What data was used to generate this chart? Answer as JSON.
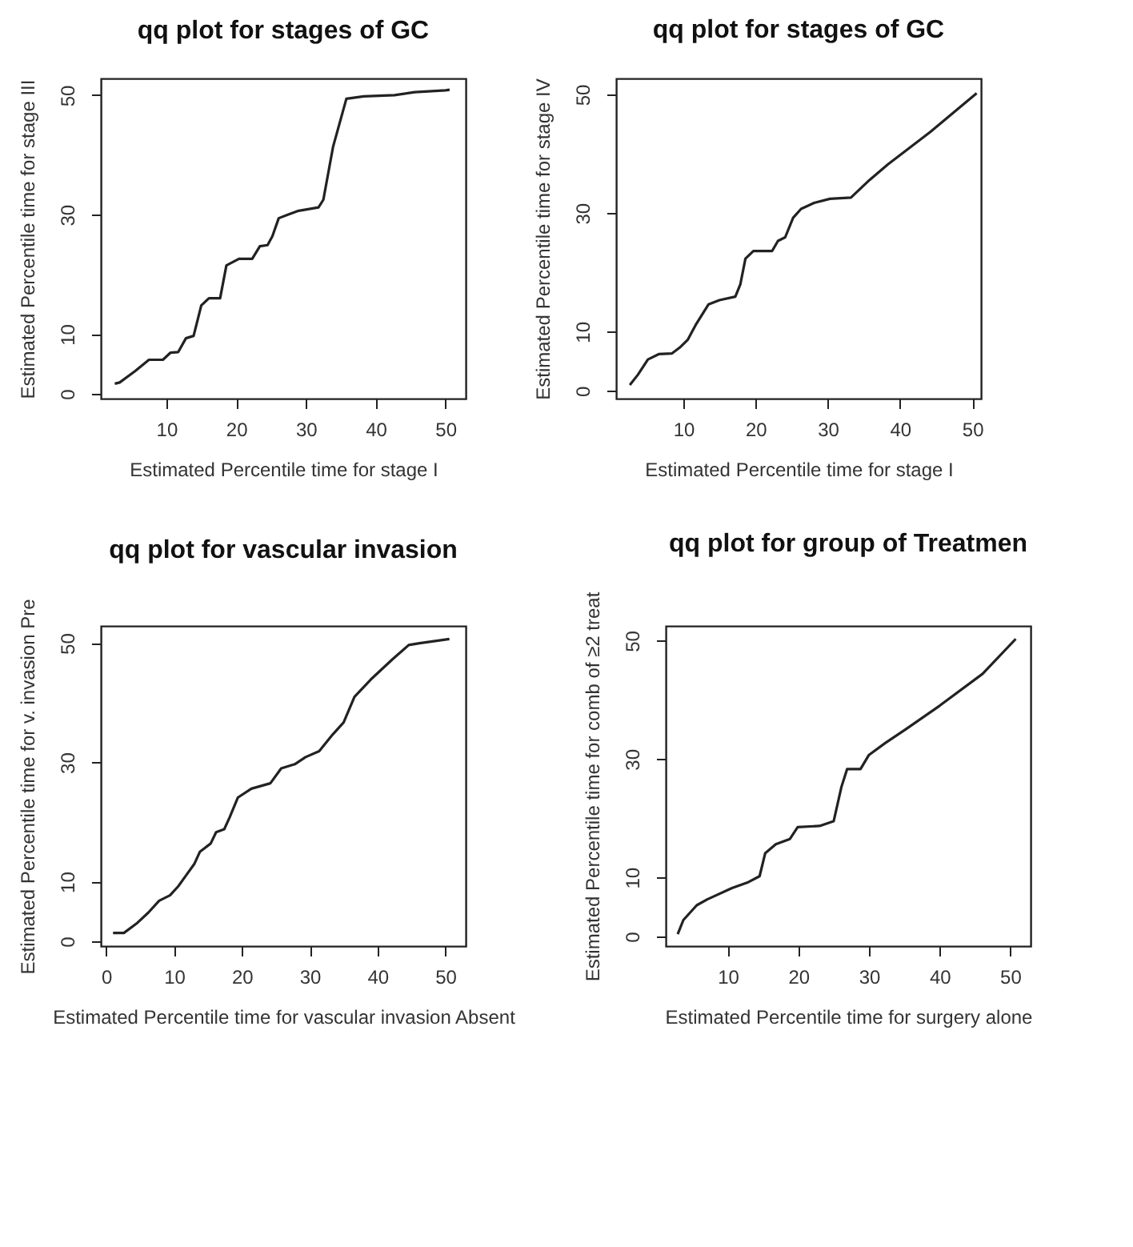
{
  "chart_data": [
    {
      "type": "line",
      "title": "qq plot for stages of GC",
      "xlabel": "Estimated Percentile time for stage I",
      "ylabel": "Estimated Percentile time for stage III",
      "xlim": [
        0.6,
        52.9
      ],
      "ylim": [
        -0.8,
        52.8
      ],
      "xticks": [
        10,
        20,
        30,
        40,
        50
      ],
      "yticks": [
        0,
        10,
        30,
        50
      ],
      "grid": false,
      "x": [
        2.6,
        3.3,
        5.5,
        7.5,
        9.5,
        10.6,
        11.7,
        12.8,
        13.9,
        15.0,
        16.1,
        17.7,
        18.6,
        20.4,
        22.3,
        23.4,
        24.5,
        25.2,
        26.1,
        27.4,
        28.8,
        31.8,
        32.5,
        33.9,
        35.8,
        38.3,
        42.7,
        45.6,
        50.0,
        50.6
      ],
      "series": [
        {
          "color": "#222222",
          "values": [
            1.7,
            1.9,
            3.8,
            5.7,
            5.7,
            6.9,
            7.0,
            9.3,
            9.7,
            14.8,
            16.0,
            16.0,
            21.5,
            22.6,
            22.6,
            24.7,
            24.9,
            26.4,
            29.4,
            30.0,
            30.6,
            31.2,
            32.5,
            41.4,
            49.4,
            49.8,
            50.0,
            50.5,
            50.8,
            50.9
          ]
        }
      ]
    },
    {
      "type": "line",
      "title": "qq plot for stages of GC",
      "xlabel": "Estimated Percentile time for stage I",
      "ylabel": "Estimated Percentile time for stage IV",
      "xlim": [
        0.7,
        51.2
      ],
      "ylim": [
        -1.3,
        52.7
      ],
      "xticks": [
        10,
        20,
        30,
        40,
        50
      ],
      "yticks": [
        0,
        10,
        30,
        50
      ],
      "grid": false,
      "x": [
        2.6,
        3.7,
        5.1,
        6.6,
        8.4,
        9.5,
        10.6,
        11.7,
        13.5,
        15.0,
        17.2,
        17.9,
        18.6,
        19.7,
        22.3,
        23.1,
        24.1,
        25.2,
        26.3,
        28.1,
        30.3,
        33.2,
        35.8,
        38.3,
        44.2,
        50.6
      ],
      "series": [
        {
          "color": "#222222",
          "values": [
            1.0,
            2.7,
            5.3,
            6.2,
            6.3,
            7.3,
            8.6,
            11.1,
            14.6,
            15.3,
            15.9,
            18.0,
            22.3,
            23.6,
            23.6,
            25.3,
            25.9,
            29.2,
            30.7,
            31.7,
            32.4,
            32.6,
            35.6,
            38.2,
            43.7,
            50.2
          ]
        }
      ]
    },
    {
      "type": "line",
      "title": "qq plot for vascular invasion",
      "xlabel": "Estimated Percentile time for vascular invasion Absent",
      "ylabel": "Estimated Percentile time for v. invasion Pre",
      "xlim": [
        -0.8,
        53.0
      ],
      "ylim": [
        -0.8,
        52.9
      ],
      "xticks": [
        0,
        10,
        20,
        30,
        40,
        50
      ],
      "yticks": [
        0,
        10,
        30,
        50
      ],
      "grid": false,
      "x": [
        1.0,
        2.6,
        4.6,
        6.2,
        7.8,
        9.4,
        10.6,
        11.8,
        13.0,
        13.8,
        15.4,
        16.2,
        17.4,
        18.2,
        19.4,
        21.4,
        24.2,
        25.8,
        27.8,
        29.4,
        31.4,
        33.4,
        35.0,
        36.6,
        39.0,
        42.2,
        44.6,
        46.2,
        50.6
      ],
      "series": [
        {
          "color": "#222222",
          "values": [
            1.4,
            1.4,
            3.1,
            4.8,
            6.8,
            7.7,
            9.2,
            11.1,
            13.0,
            15.0,
            16.4,
            18.3,
            18.8,
            20.8,
            24.1,
            25.6,
            26.5,
            29.0,
            29.7,
            30.9,
            31.9,
            34.7,
            36.7,
            41.0,
            43.9,
            47.3,
            49.7,
            50.0,
            50.7
          ]
        }
      ]
    },
    {
      "type": "line",
      "title": "qq plot for group of Treatmen",
      "xlabel": "Estimated Percentile time for surgery alone",
      "ylabel": "Estimated Percentile time for comb of ≥2 treat",
      "xlim": [
        1.2,
        52.9
      ],
      "ylim": [
        -1.6,
        52.5
      ],
      "xticks": [
        10,
        20,
        30,
        40,
        50
      ],
      "yticks": [
        0,
        10,
        30,
        50
      ],
      "grid": false,
      "x": [
        2.9,
        3.7,
        5.6,
        7.1,
        10.6,
        12.9,
        14.5,
        15.3,
        16.8,
        18.8,
        19.9,
        23.0,
        25.0,
        26.1,
        26.9,
        28.8,
        30.0,
        32.3,
        35.3,
        40.0,
        46.1,
        50.8
      ],
      "series": [
        {
          "color": "#222222",
          "values": [
            0.4,
            2.8,
            5.3,
            6.3,
            8.2,
            9.2,
            10.2,
            14.1,
            15.6,
            16.5,
            18.5,
            18.7,
            19.5,
            25.3,
            28.3,
            28.3,
            30.7,
            32.7,
            35.1,
            39.0,
            44.4,
            50.3
          ]
        }
      ]
    }
  ]
}
